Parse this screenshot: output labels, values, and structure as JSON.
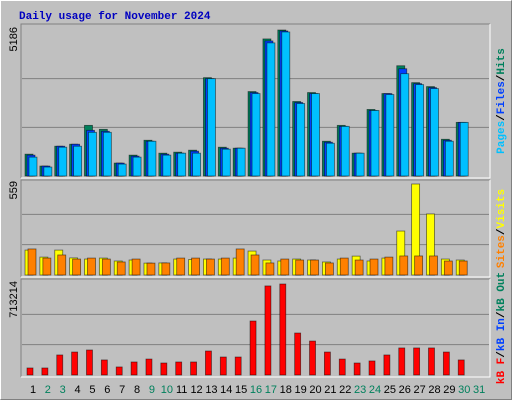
{
  "title": "Daily usage for November 2024",
  "categories": [
    "1",
    "2",
    "3",
    "4",
    "5",
    "6",
    "7",
    "8",
    "9",
    "10",
    "11",
    "12",
    "13",
    "14",
    "15",
    "16",
    "17",
    "18",
    "19",
    "20",
    "21",
    "22",
    "23",
    "24",
    "25",
    "26",
    "27",
    "28",
    "29",
    "30",
    "31"
  ],
  "category_colors": [
    "#000000",
    "#00805c",
    "#00805c",
    "#000000",
    "#000000",
    "#000000",
    "#000000",
    "#000000",
    "#00805c",
    "#00805c",
    "#000000",
    "#000000",
    "#000000",
    "#000000",
    "#000000",
    "#00805c",
    "#00805c",
    "#000000",
    "#000000",
    "#000000",
    "#000000",
    "#000000",
    "#00805c",
    "#00805c",
    "#000000",
    "#000000",
    "#000000",
    "#000000",
    "#000000",
    "#00805c",
    "#00805c"
  ],
  "chart_data": [
    {
      "type": "bar",
      "ylim": [
        0,
        5186
      ],
      "yticks": [
        5186
      ],
      "grid": true,
      "legend_separator": "/",
      "series": [
        {
          "name": "Pages",
          "color": "#00c0ff",
          "values": [
            670,
            318,
            1023,
            1058,
            1552,
            1552,
            423,
            670,
            1235,
            741,
            811,
            811,
            3457,
            953,
            988,
            2928,
            4728,
            5116,
            2575,
            2928,
            1164,
            1764,
            811,
            2328,
            2893,
            3634,
            3246,
            3105,
            1235,
            1905,
            0
          ]
        },
        {
          "name": "Files",
          "color": "#0040ff",
          "values": [
            741,
            353,
            1058,
            1129,
            1623,
            1588,
            459,
            706,
            1235,
            776,
            811,
            882,
            3457,
            988,
            988,
            2964,
            4798,
            5151,
            2611,
            2928,
            1200,
            1764,
            811,
            2328,
            2928,
            3810,
            3281,
            3140,
            1270,
            1905,
            0
          ]
        },
        {
          "name": "Hits",
          "color": "#00805c",
          "values": [
            776,
            353,
            1058,
            1129,
            1799,
            1658,
            459,
            741,
            1270,
            811,
            847,
            917,
            3493,
            1023,
            988,
            2999,
            4869,
            5186,
            2646,
            2964,
            1235,
            1799,
            811,
            2364,
            2928,
            3916,
            3316,
            3175,
            1305,
            1905,
            0
          ]
        }
      ]
    },
    {
      "type": "bar",
      "ylim": [
        0,
        559
      ],
      "yticks": [
        559
      ],
      "grid": true,
      "legend_separator": "/",
      "series": [
        {
          "name": "Sites",
          "color": "#ff8000",
          "values": [
            160,
            104,
            123,
            98,
            104,
            98,
            80,
            98,
            73,
            74,
            104,
            104,
            98,
            104,
            160,
            123,
            74,
            98,
            92,
            92,
            74,
            104,
            92,
            98,
            110,
            117,
            117,
            117,
            86,
            86,
            0
          ]
        },
        {
          "name": "Visits",
          "color": "#ffff00",
          "values": [
            153,
            110,
            153,
            105,
            98,
            104,
            86,
            92,
            73,
            74,
            98,
            95,
            98,
            98,
            104,
            147,
            92,
            86,
            98,
            92,
            80,
            98,
            116,
            86,
            104,
            270,
            559,
            375,
            98,
            92,
            0
          ]
        }
      ]
    },
    {
      "type": "bar",
      "ylim": [
        0,
        713214
      ],
      "yticks": [
        713214
      ],
      "grid": true,
      "legend_separator": "/",
      "series": [
        {
          "name": "kB F",
          "color": "#ff0000",
          "values": [
            55000,
            55000,
            157000,
            180000,
            196000,
            118000,
            63000,
            102000,
            125000,
            94000,
            102000,
            102000,
            188000,
            141000,
            141000,
            423000,
            698000,
            713214,
            329000,
            266000,
            180000,
            125000,
            94000,
            110000,
            157000,
            212000,
            212000,
            212000,
            180000,
            118000,
            0
          ]
        },
        {
          "name": "kB In",
          "color": "#0040ff",
          "values": [
            0,
            0,
            0,
            0,
            0,
            0,
            0,
            0,
            0,
            0,
            0,
            0,
            0,
            0,
            0,
            0,
            0,
            0,
            0,
            0,
            0,
            0,
            0,
            0,
            0,
            0,
            0,
            0,
            0,
            0,
            0
          ]
        },
        {
          "name": "kB Out",
          "color": "#00805c",
          "values": [
            0,
            0,
            0,
            0,
            0,
            0,
            0,
            0,
            0,
            0,
            0,
            0,
            0,
            0,
            0,
            0,
            0,
            0,
            0,
            0,
            0,
            0,
            0,
            0,
            0,
            0,
            0,
            0,
            0,
            0,
            0
          ]
        }
      ]
    }
  ]
}
